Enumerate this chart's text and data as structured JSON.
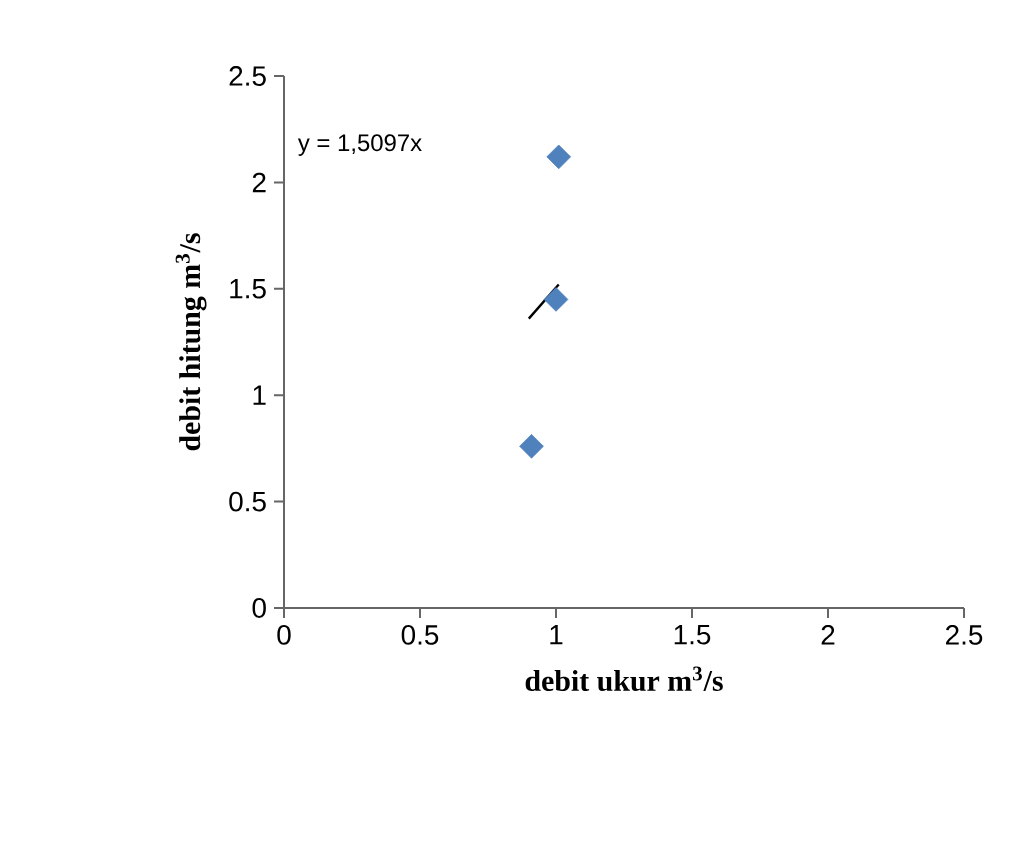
{
  "chart_data": {
    "type": "scatter",
    "xlabel": "**debit ukur m$^{3}$/s**",
    "ylabel": "**debit hitung m$^{3}$/s**",
    "xlim": [
      0,
      2.5
    ],
    "xticks": [
      0,
      0.5,
      1,
      1.5,
      2,
      2.5
    ],
    "ylim": [
      0,
      2.5
    ],
    "yticks": [
      0,
      0.5,
      1,
      1.5,
      2,
      2.5
    ],
    "marker": "diamond",
    "series": [
      {
        "color": "#4f81bd",
        "x": [
          1.01,
          1.0,
          0.91
        ],
        "values": [
          2.12,
          1.45,
          0.76
        ]
      },
      {
        "type": "line",
        "color": "#000000",
        "marker": "none",
        "x": [
          0.9,
          1.01
        ],
        "values": [
          1.36,
          1.52
        ]
      }
    ],
    "annotations": [
      "y = 1,5097x"
    ]
  }
}
